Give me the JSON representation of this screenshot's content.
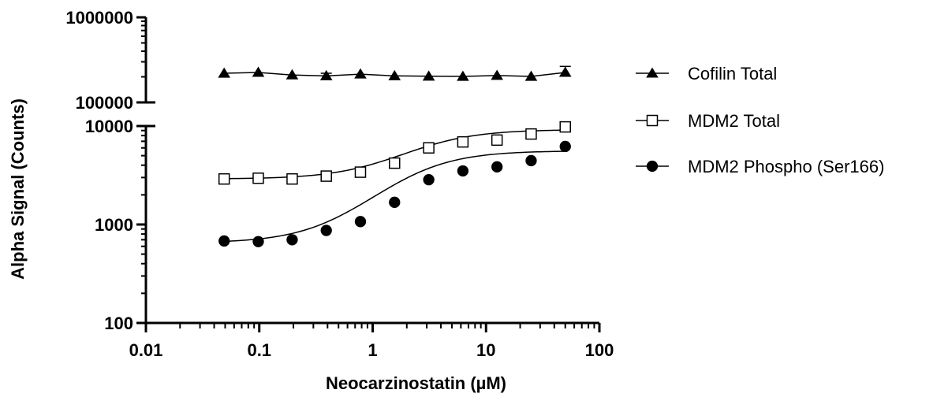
{
  "chart_data": {
    "type": "scatter",
    "xlabel": "Neocarzinostatin (µM)",
    "ylabel": "Alpha Signal (Counts)",
    "x_scale": "log",
    "y_scale": "log-segmented",
    "xlim": [
      0.01,
      100
    ],
    "x_ticks": [
      {
        "value": 0.01,
        "label": "0.01"
      },
      {
        "value": 0.1,
        "label": "0.1"
      },
      {
        "value": 1,
        "label": "1"
      },
      {
        "value": 10,
        "label": "10"
      },
      {
        "value": 100,
        "label": "100"
      }
    ],
    "y_segments": [
      {
        "range": [
          100,
          10000
        ],
        "ticks": [
          {
            "value": 100,
            "label": "100"
          },
          {
            "value": 1000,
            "label": "1000"
          },
          {
            "value": 10000,
            "label": "10000"
          }
        ]
      },
      {
        "range": [
          100000,
          1000000
        ],
        "ticks": [
          {
            "value": 100000,
            "label": "100000"
          },
          {
            "value": 1000000,
            "label": "1000000"
          }
        ]
      }
    ],
    "grid": false,
    "legend": "right",
    "series": [
      {
        "name": "Cofilin Total",
        "marker": "filled-triangle",
        "color": "#000000",
        "x": [
          0.049,
          0.098,
          0.195,
          0.39,
          0.78,
          1.56,
          3.125,
          6.25,
          12.5,
          25,
          50
        ],
        "y": [
          220000,
          225000,
          210000,
          205000,
          215000,
          205000,
          203000,
          202000,
          207000,
          202000,
          225000
        ],
        "error_high": [
          null,
          null,
          null,
          220000,
          null,
          null,
          null,
          null,
          null,
          null,
          265000
        ]
      },
      {
        "name": "MDM2 Total",
        "marker": "open-square",
        "color": "#000000",
        "x": [
          0.049,
          0.098,
          0.195,
          0.39,
          0.78,
          1.56,
          3.125,
          6.25,
          12.5,
          25,
          50
        ],
        "y": [
          2900,
          2950,
          2900,
          3100,
          3400,
          4200,
          6000,
          6900,
          7200,
          8300,
          9800
        ]
      },
      {
        "name": "MDM2 Phospho (Ser166)",
        "marker": "filled-circle",
        "color": "#000000",
        "x": [
          0.049,
          0.098,
          0.195,
          0.39,
          0.78,
          1.56,
          3.125,
          6.25,
          12.5,
          25,
          50
        ],
        "y": [
          680,
          670,
          700,
          870,
          1070,
          1680,
          2850,
          3500,
          3850,
          4450,
          6200
        ]
      }
    ]
  }
}
